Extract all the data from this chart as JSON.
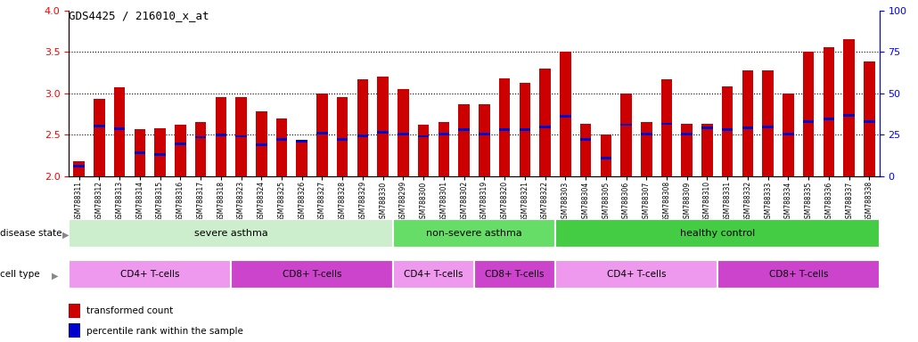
{
  "title": "GDS4425 / 216010_x_at",
  "samples": [
    "GSM788311",
    "GSM788312",
    "GSM788313",
    "GSM788314",
    "GSM788315",
    "GSM788316",
    "GSM788317",
    "GSM788318",
    "GSM788323",
    "GSM788324",
    "GSM788325",
    "GSM788326",
    "GSM788327",
    "GSM788328",
    "GSM788329",
    "GSM788330",
    "GSM788299",
    "GSM788300",
    "GSM788301",
    "GSM788302",
    "GSM788319",
    "GSM788320",
    "GSM788321",
    "GSM788322",
    "GSM788303",
    "GSM788304",
    "GSM788305",
    "GSM788306",
    "GSM788307",
    "GSM788308",
    "GSM788309",
    "GSM788310",
    "GSM788331",
    "GSM788332",
    "GSM788333",
    "GSM788334",
    "GSM788335",
    "GSM788336",
    "GSM788337",
    "GSM788338"
  ],
  "bar_values": [
    2.18,
    2.93,
    3.07,
    2.57,
    2.58,
    2.62,
    2.65,
    2.95,
    2.95,
    2.78,
    2.7,
    2.42,
    3.0,
    2.95,
    3.17,
    3.2,
    3.05,
    2.62,
    2.65,
    2.87,
    2.87,
    3.18,
    3.13,
    3.3,
    3.5,
    2.63,
    2.5,
    3.0,
    2.65,
    3.17,
    2.63,
    2.63,
    3.08,
    3.28,
    3.28,
    3.0,
    3.5,
    3.55,
    3.65,
    3.38
  ],
  "percentile_values": [
    2.12,
    2.6,
    2.57,
    2.28,
    2.26,
    2.39,
    2.47,
    2.5,
    2.48,
    2.38,
    2.44,
    2.42,
    2.52,
    2.44,
    2.49,
    2.53,
    2.51,
    2.48,
    2.51,
    2.56,
    2.51,
    2.56,
    2.56,
    2.59,
    2.72,
    2.44,
    2.22,
    2.62,
    2.51,
    2.63,
    2.51,
    2.58,
    2.56,
    2.58,
    2.59,
    2.51,
    2.66,
    2.69,
    2.73,
    2.66
  ],
  "ylim_left": [
    2.0,
    4.0
  ],
  "ylim_right": [
    0,
    100
  ],
  "yticks_left": [
    2.0,
    2.5,
    3.0,
    3.5,
    4.0
  ],
  "yticks_right": [
    0,
    25,
    50,
    75,
    100
  ],
  "bar_color": "#cc0000",
  "percentile_color": "#0000cc",
  "disease_state_groups": [
    {
      "label": "severe asthma",
      "start": 0,
      "end": 15,
      "color": "#cceecc"
    },
    {
      "label": "non-severe asthma",
      "start": 16,
      "end": 23,
      "color": "#66dd66"
    },
    {
      "label": "healthy control",
      "start": 24,
      "end": 39,
      "color": "#44cc44"
    }
  ],
  "cell_type_groups": [
    {
      "label": "CD4+ T-cells",
      "start": 0,
      "end": 7,
      "color": "#ee99ee"
    },
    {
      "label": "CD8+ T-cells",
      "start": 8,
      "end": 15,
      "color": "#cc44cc"
    },
    {
      "label": "CD4+ T-cells",
      "start": 16,
      "end": 19,
      "color": "#ee99ee"
    },
    {
      "label": "CD8+ T-cells",
      "start": 20,
      "end": 23,
      "color": "#cc44cc"
    },
    {
      "label": "CD4+ T-cells",
      "start": 24,
      "end": 31,
      "color": "#ee99ee"
    },
    {
      "label": "CD8+ T-cells",
      "start": 32,
      "end": 39,
      "color": "#cc44cc"
    }
  ]
}
